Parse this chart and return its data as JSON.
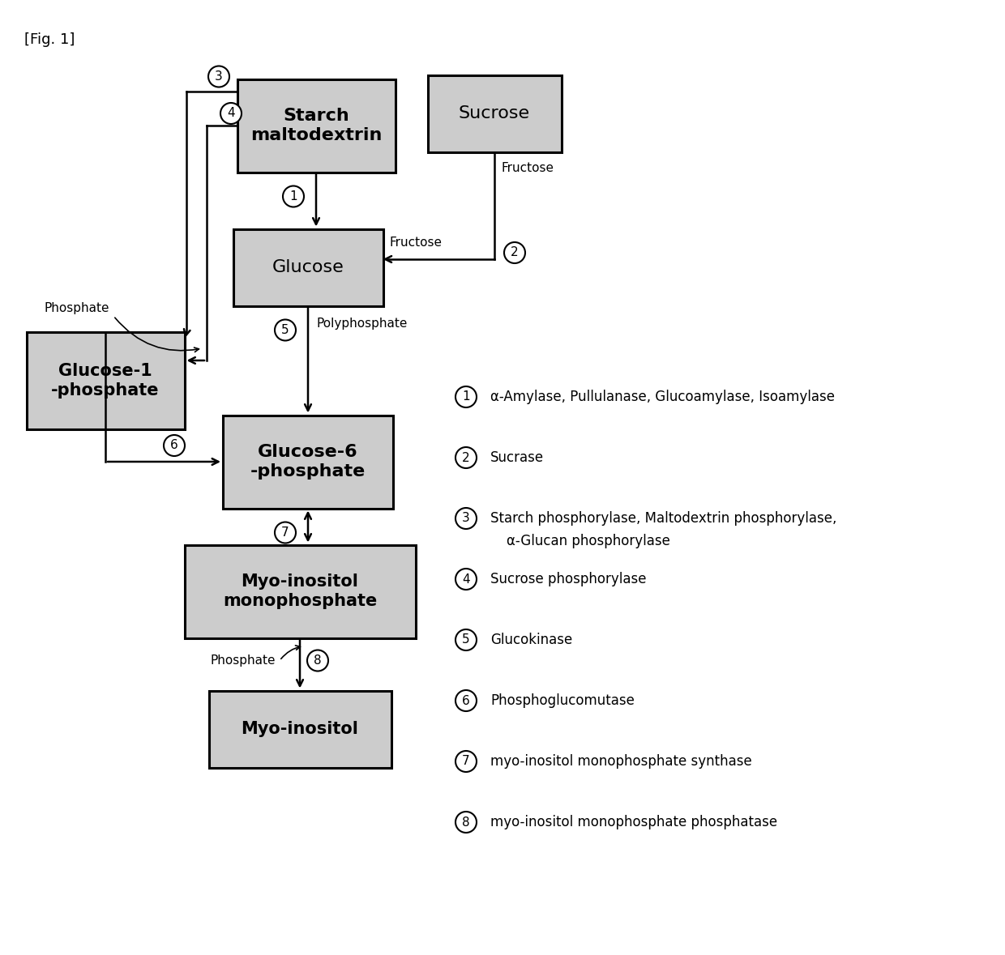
{
  "fig_label": "[Fig. 1]",
  "bg": "#ffffff",
  "box_fill": "#cccccc",
  "box_edge": "#000000",
  "legend": [
    {
      "n": "1",
      "txt": "α-Amylase, Pullulanase, Glucoamylase, Isoamylase",
      "cont": null
    },
    {
      "n": "2",
      "txt": "Sucrase",
      "cont": null
    },
    {
      "n": "3",
      "txt": "Starch phosphorylase, Maltodextrin phosphorylase,",
      "cont": "α-Glucan phosphorylase"
    },
    {
      "n": "4",
      "txt": "Sucrose phosphorylase",
      "cont": null
    },
    {
      "n": "5",
      "txt": "Glucokinase",
      "cont": null
    },
    {
      "n": "6",
      "txt": "Phosphoglucomutase",
      "cont": null
    },
    {
      "n": "7",
      "txt": "myo-inositol monophosphate synthase",
      "cont": null
    },
    {
      "n": "8",
      "txt": "myo-inositol monophosphate phosphatase",
      "cont": null
    }
  ]
}
